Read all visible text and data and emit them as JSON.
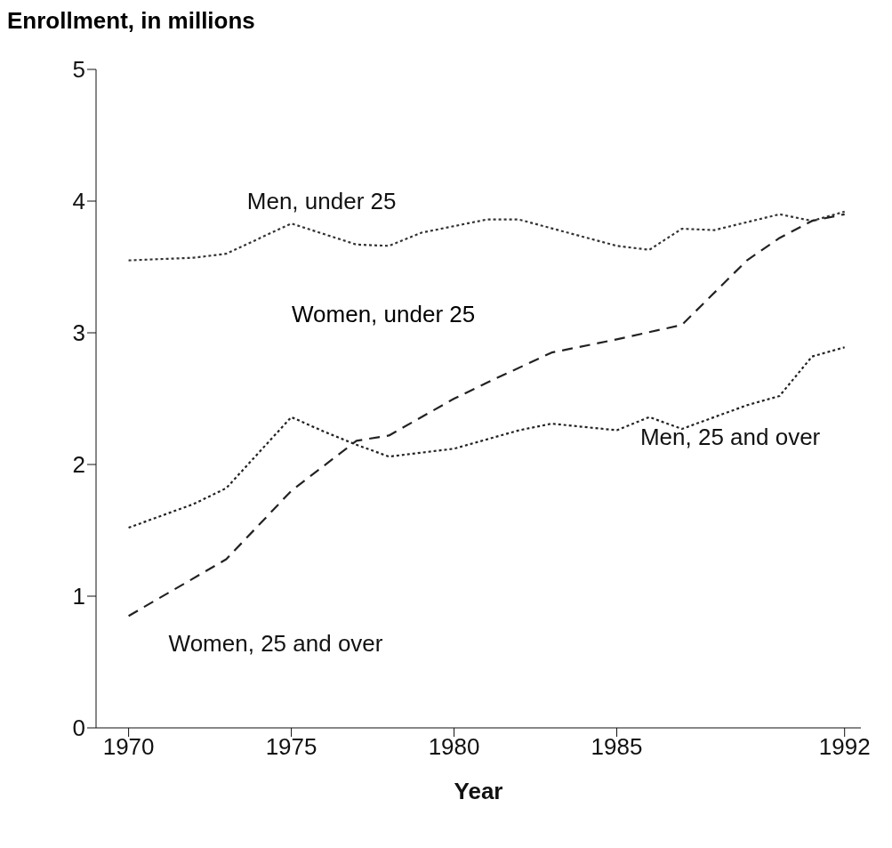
{
  "chart_data": {
    "type": "line",
    "ylabel": "Enrollment, in millions",
    "xlabel": "Year",
    "xlim": [
      1969,
      1992.5
    ],
    "xticks": [
      1970,
      1975,
      1980,
      1985,
      1992
    ],
    "ylim": [
      0,
      5
    ],
    "yticks": [
      0,
      1,
      2,
      3,
      4,
      5
    ],
    "grid": false,
    "legend": false,
    "marker": "none",
    "annotations": [
      "Women, under 25"
    ],
    "series": [
      {
        "name": "Men, under 25",
        "color": "#333333",
        "line_style": "dotted",
        "x": [
          1970,
          1972,
          1973,
          1975,
          1977,
          1978,
          1979,
          1981,
          1982,
          1985,
          1986,
          1987,
          1988,
          1990,
          1991,
          1992
        ],
        "values": [
          3.55,
          3.57,
          3.6,
          3.83,
          3.67,
          3.66,
          3.76,
          3.86,
          3.86,
          3.66,
          3.63,
          3.79,
          3.78,
          3.9,
          3.85,
          3.92
        ]
      },
      {
        "name": "Women, 25 and over",
        "color": "#222222",
        "line_style": "dashed",
        "x": [
          1970,
          1973,
          1975,
          1977,
          1978,
          1980,
          1981,
          1983,
          1985,
          1987,
          1989,
          1990,
          1991,
          1992
        ],
        "values": [
          0.85,
          1.28,
          1.8,
          2.18,
          2.22,
          2.5,
          2.62,
          2.85,
          2.95,
          3.06,
          3.55,
          3.72,
          3.85,
          3.9
        ]
      },
      {
        "name": "Men, 25 and over",
        "color": "#222222",
        "line_style": "dotted",
        "x": [
          1970,
          1972,
          1973,
          1975,
          1976,
          1977,
          1978,
          1980,
          1982,
          1983,
          1985,
          1986,
          1987,
          1989,
          1990,
          1991,
          1992
        ],
        "values": [
          1.52,
          1.7,
          1.82,
          2.36,
          2.25,
          2.15,
          2.06,
          2.12,
          2.26,
          2.31,
          2.26,
          2.36,
          2.27,
          2.45,
          2.52,
          2.82,
          2.89
        ]
      }
    ]
  }
}
